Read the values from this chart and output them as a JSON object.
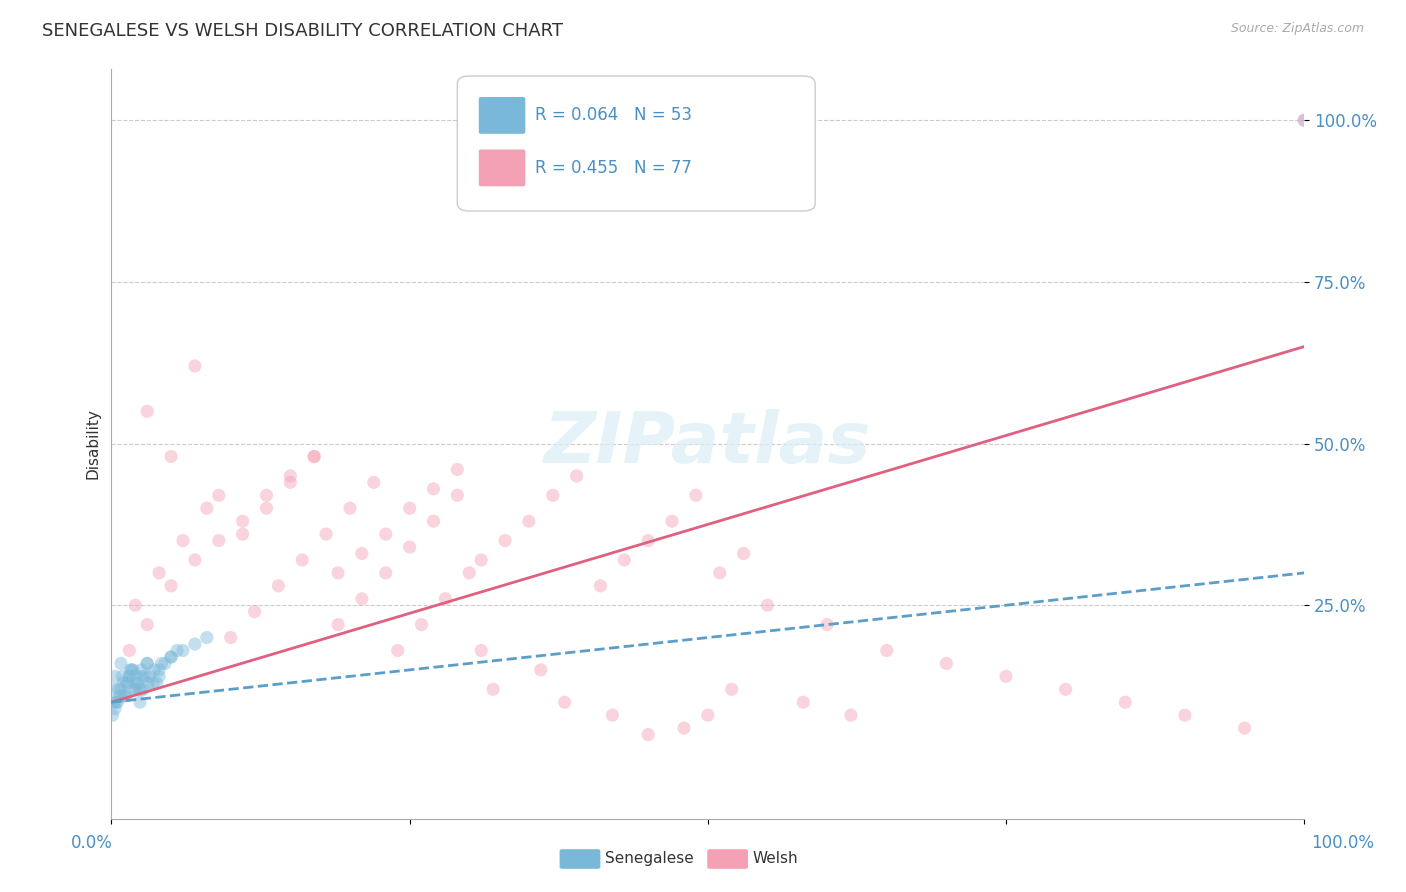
{
  "title": "SENEGALESE VS WELSH DISABILITY CORRELATION CHART",
  "source_text": "Source: ZipAtlas.com",
  "ylabel": "Disability",
  "ytick_labels": [
    "100.0%",
    "75.0%",
    "50.0%",
    "25.0%"
  ],
  "ytick_values": [
    100,
    75,
    50,
    25
  ],
  "xlim": [
    0,
    100
  ],
  "ylim": [
    -8,
    108
  ],
  "blue_color": "#7ab8d9",
  "pink_color": "#f4a0b5",
  "blue_line_color": "#5b9ec9",
  "pink_line_color": "#e06080",
  "legend_r_blue": "R = 0.064",
  "legend_n_blue": "N = 53",
  "legend_r_pink": "R = 0.455",
  "legend_n_pink": "N = 77",
  "watermark_text": "ZIPatlas",
  "pink_line_x0": 0,
  "pink_line_y0": 10,
  "pink_line_x1": 100,
  "pink_line_y1": 65,
  "blue_line_x0": 0,
  "blue_line_y0": 10,
  "blue_line_x1": 100,
  "blue_line_y1": 30,
  "senegalese_x": [
    0.2,
    0.3,
    0.5,
    0.8,
    1.0,
    1.2,
    1.5,
    1.8,
    2.0,
    2.2,
    2.5,
    2.8,
    3.0,
    3.5,
    4.0,
    0.1,
    0.4,
    0.6,
    0.9,
    1.1,
    1.4,
    1.6,
    1.9,
    2.1,
    2.4,
    2.7,
    3.2,
    3.8,
    4.5,
    5.0,
    0.3,
    0.7,
    1.3,
    1.7,
    2.3,
    2.6,
    3.1,
    3.6,
    4.2,
    5.5,
    0.2,
    0.8,
    1.0,
    1.5,
    2.0,
    2.5,
    3.0,
    4.0,
    5.0,
    6.0,
    7.0,
    8.0,
    100.0
  ],
  "senegalese_y": [
    12,
    14,
    10,
    16,
    13,
    11,
    14,
    15,
    12,
    13,
    12,
    14,
    16,
    13,
    15,
    8,
    10,
    12,
    14,
    11,
    13,
    15,
    12,
    14,
    10,
    12,
    14,
    13,
    16,
    17,
    9,
    11,
    13,
    15,
    12,
    14,
    13,
    15,
    16,
    18,
    10,
    12,
    11,
    14,
    13,
    15,
    16,
    14,
    17,
    18,
    19,
    20,
    100.0
  ],
  "welsh_x": [
    1.5,
    3.0,
    5.0,
    7.0,
    9.0,
    11.0,
    13.0,
    15.0,
    17.0,
    19.0,
    21.0,
    23.0,
    25.0,
    27.0,
    29.0,
    31.0,
    33.0,
    35.0,
    37.0,
    39.0,
    41.0,
    43.0,
    45.0,
    47.0,
    49.0,
    51.0,
    53.0,
    3.0,
    5.0,
    7.0,
    9.0,
    11.0,
    13.0,
    15.0,
    17.0,
    19.0,
    21.0,
    23.0,
    25.0,
    27.0,
    29.0,
    31.0,
    2.0,
    4.0,
    6.0,
    8.0,
    10.0,
    12.0,
    14.0,
    16.0,
    18.0,
    20.0,
    22.0,
    24.0,
    26.0,
    28.0,
    30.0,
    55.0,
    60.0,
    65.0,
    70.0,
    75.0,
    80.0,
    85.0,
    90.0,
    95.0,
    100.0,
    45.0,
    50.0,
    38.0,
    32.0,
    36.0,
    42.0,
    48.0,
    52.0,
    58.0,
    62.0
  ],
  "welsh_y": [
    18,
    22,
    28,
    32,
    35,
    38,
    42,
    45,
    48,
    30,
    33,
    36,
    40,
    43,
    46,
    32,
    35,
    38,
    42,
    45,
    28,
    32,
    35,
    38,
    42,
    30,
    33,
    55,
    48,
    62,
    42,
    36,
    40,
    44,
    48,
    22,
    26,
    30,
    34,
    38,
    42,
    18,
    25,
    30,
    35,
    40,
    20,
    24,
    28,
    32,
    36,
    40,
    44,
    18,
    22,
    26,
    30,
    25,
    22,
    18,
    16,
    14,
    12,
    10,
    8,
    6,
    100.0,
    5,
    8,
    10,
    12,
    15,
    8,
    6,
    12,
    10,
    8
  ]
}
